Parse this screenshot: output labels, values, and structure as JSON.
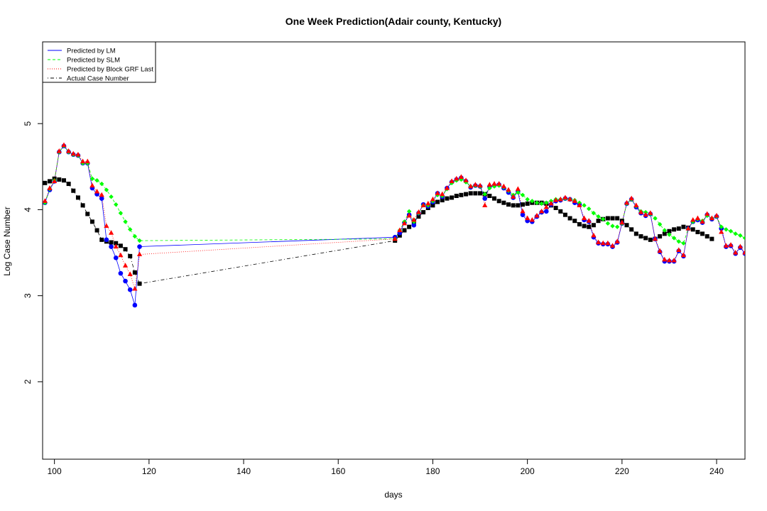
{
  "chart_data": {
    "type": "line",
    "title": "One Week Prediction(Adair county, Kentucky)",
    "xlabel": "days",
    "ylabel": "Log Case Number",
    "xlim": [
      97.5,
      246
    ],
    "ylim": [
      1.1,
      5.95
    ],
    "xticks": [
      100,
      120,
      140,
      160,
      180,
      200,
      220,
      240
    ],
    "yticks": [
      2,
      3,
      4,
      5
    ],
    "grid": false,
    "legend_position": "top-left",
    "legend": [
      {
        "label": "Predicted by LM",
        "color": "#0000ff",
        "style": "solid"
      },
      {
        "label": "Predicted by SLM",
        "color": "#00ff00",
        "style": "dashed"
      },
      {
        "label": "Predicted by Block GRF Last",
        "color": "#ff0000",
        "style": "dotted"
      },
      {
        "label": "Actual Case Number",
        "color": "#000000",
        "style": "dotdash"
      }
    ],
    "series": [
      {
        "name": "Actual Case Number",
        "color": "#000000",
        "marker": "square",
        "x": [
          97,
          98,
          99,
          100,
          101,
          102,
          103,
          104,
          105,
          106,
          107,
          108,
          109,
          110,
          111,
          112,
          113,
          114,
          115,
          116,
          117,
          118,
          172,
          173,
          174,
          175,
          176,
          177,
          178,
          179,
          180,
          181,
          182,
          183,
          184,
          185,
          186,
          187,
          188,
          189,
          190,
          191,
          192,
          193,
          194,
          195,
          196,
          197,
          198,
          199,
          200,
          201,
          202,
          203,
          204,
          205,
          206,
          207,
          208,
          209,
          210,
          211,
          212,
          213,
          214,
          215,
          216,
          217,
          218,
          219,
          220,
          221,
          222,
          223,
          224,
          225,
          226,
          227,
          228,
          229,
          230,
          231,
          232,
          233,
          234,
          235,
          236,
          237,
          238,
          239
        ],
        "y": [
          4.27,
          4.31,
          4.33,
          4.36,
          4.35,
          4.34,
          4.3,
          4.22,
          4.14,
          4.05,
          3.95,
          3.86,
          3.76,
          3.65,
          3.63,
          3.62,
          3.61,
          3.58,
          3.54,
          3.46,
          3.27,
          3.14,
          3.64,
          3.7,
          3.76,
          3.8,
          3.86,
          3.92,
          3.97,
          4.02,
          4.05,
          4.09,
          4.11,
          4.13,
          4.14,
          4.16,
          4.17,
          4.18,
          4.19,
          4.19,
          4.19,
          4.18,
          4.16,
          4.13,
          4.1,
          4.08,
          4.06,
          4.05,
          4.05,
          4.06,
          4.07,
          4.08,
          4.08,
          4.08,
          4.07,
          4.05,
          4.02,
          3.98,
          3.94,
          3.9,
          3.87,
          3.83,
          3.81,
          3.8,
          3.82,
          3.87,
          3.89,
          3.9,
          3.9,
          3.9,
          3.87,
          3.82,
          3.77,
          3.72,
          3.69,
          3.67,
          3.65,
          3.66,
          3.69,
          3.72,
          3.75,
          3.77,
          3.78,
          3.8,
          3.79,
          3.77,
          3.74,
          3.72,
          3.69,
          3.66
        ]
      },
      {
        "name": "Predicted by LM",
        "color": "#0000ff",
        "marker": "circle",
        "x": [
          97,
          98,
          99,
          100,
          101,
          102,
          103,
          104,
          105,
          106,
          107,
          108,
          109,
          110,
          111,
          112,
          113,
          114,
          115,
          116,
          117,
          118,
          172,
          173,
          174,
          175,
          176,
          177,
          178,
          179,
          180,
          181,
          182,
          183,
          184,
          185,
          186,
          187,
          188,
          189,
          190,
          191,
          192,
          193,
          194,
          195,
          196,
          197,
          198,
          199,
          200,
          201,
          202,
          203,
          204,
          205,
          206,
          207,
          208,
          209,
          210,
          211,
          212,
          213,
          214,
          215,
          216,
          217,
          218,
          219,
          220,
          221,
          222,
          223,
          224,
          225,
          226,
          227,
          228,
          229,
          230,
          231,
          232,
          233,
          234,
          235,
          236,
          237,
          238,
          239,
          240,
          241,
          242,
          243,
          244,
          245,
          246
        ],
        "y": [
          4.1,
          4.08,
          4.23,
          4.33,
          4.67,
          4.74,
          4.67,
          4.64,
          4.63,
          4.54,
          4.54,
          4.25,
          4.18,
          4.13,
          3.65,
          3.57,
          3.44,
          3.26,
          3.17,
          3.07,
          2.89,
          3.57,
          3.68,
          3.73,
          3.85,
          3.94,
          3.82,
          3.96,
          4.06,
          4.04,
          4.09,
          4.19,
          4.15,
          4.25,
          4.32,
          4.35,
          4.37,
          4.33,
          4.26,
          4.28,
          4.27,
          4.13,
          4.27,
          4.28,
          4.29,
          4.25,
          4.2,
          4.14,
          4.21,
          3.94,
          3.87,
          3.86,
          3.92,
          3.97,
          3.98,
          4.06,
          4.1,
          4.11,
          4.13,
          4.12,
          4.08,
          4.06,
          3.88,
          3.86,
          3.68,
          3.61,
          3.6,
          3.6,
          3.57,
          3.62,
          3.84,
          4.07,
          4.12,
          4.03,
          3.96,
          3.93,
          3.95,
          3.66,
          3.51,
          3.4,
          3.4,
          3.4,
          3.52,
          3.46,
          3.78,
          3.86,
          3.88,
          3.85,
          3.94,
          3.89,
          3.92,
          3.78,
          3.57,
          3.58,
          3.49,
          3.56,
          3.49
        ]
      },
      {
        "name": "Predicted by SLM",
        "color": "#00ff00",
        "marker": "diamond",
        "x": [
          97,
          98,
          99,
          100,
          101,
          102,
          103,
          104,
          105,
          106,
          107,
          108,
          109,
          110,
          111,
          112,
          113,
          114,
          115,
          116,
          117,
          118,
          172,
          173,
          174,
          175,
          176,
          177,
          178,
          179,
          180,
          181,
          182,
          183,
          184,
          185,
          186,
          187,
          188,
          189,
          190,
          191,
          192,
          193,
          194,
          195,
          196,
          197,
          198,
          199,
          200,
          201,
          202,
          203,
          204,
          205,
          206,
          207,
          208,
          209,
          210,
          211,
          212,
          213,
          214,
          215,
          216,
          217,
          218,
          219,
          220,
          221,
          222,
          223,
          224,
          225,
          226,
          227,
          228,
          229,
          230,
          231,
          232,
          233,
          234,
          235,
          236,
          237,
          238,
          239,
          240,
          241,
          242,
          243,
          244,
          245,
          246
        ],
        "y": [
          4.1,
          4.08,
          4.24,
          4.34,
          4.67,
          4.74,
          4.67,
          4.64,
          4.63,
          4.54,
          4.54,
          4.36,
          4.34,
          4.3,
          4.23,
          4.15,
          4.06,
          3.96,
          3.86,
          3.77,
          3.69,
          3.64,
          3.66,
          3.76,
          3.86,
          3.98,
          3.86,
          3.96,
          4.05,
          4.05,
          4.1,
          4.17,
          4.16,
          4.24,
          4.31,
          4.34,
          4.35,
          4.32,
          4.27,
          4.28,
          4.27,
          4.18,
          4.25,
          4.27,
          4.28,
          4.26,
          4.22,
          4.17,
          4.2,
          4.17,
          4.12,
          4.1,
          4.08,
          4.07,
          4.08,
          4.1,
          4.12,
          4.12,
          4.13,
          4.12,
          4.11,
          4.08,
          4.05,
          4.01,
          3.96,
          3.92,
          3.89,
          3.84,
          3.81,
          3.8,
          3.84,
          4.07,
          4.12,
          4.04,
          3.98,
          3.97,
          3.95,
          3.9,
          3.83,
          3.76,
          3.71,
          3.67,
          3.63,
          3.61,
          3.78,
          3.86,
          3.89,
          3.87,
          3.93,
          3.9,
          3.92,
          3.8,
          3.77,
          3.75,
          3.72,
          3.7,
          3.67
        ]
      },
      {
        "name": "Predicted by Block GRF Last",
        "color": "#ff0000",
        "marker": "triangle",
        "x": [
          97,
          98,
          99,
          100,
          101,
          102,
          103,
          104,
          105,
          106,
          107,
          108,
          109,
          110,
          111,
          112,
          113,
          114,
          115,
          116,
          117,
          118,
          172,
          173,
          174,
          175,
          176,
          177,
          178,
          179,
          180,
          181,
          182,
          183,
          184,
          185,
          186,
          187,
          188,
          189,
          190,
          191,
          192,
          193,
          194,
          195,
          196,
          197,
          198,
          199,
          200,
          201,
          202,
          203,
          204,
          205,
          206,
          207,
          208,
          209,
          210,
          211,
          212,
          213,
          214,
          215,
          216,
          217,
          218,
          219,
          220,
          221,
          222,
          223,
          224,
          225,
          226,
          227,
          228,
          229,
          230,
          231,
          232,
          233,
          234,
          235,
          236,
          237,
          238,
          239,
          240,
          241,
          242,
          243,
          244,
          245,
          246
        ],
        "y": [
          4.11,
          4.1,
          4.25,
          4.33,
          4.68,
          4.75,
          4.68,
          4.65,
          4.64,
          4.56,
          4.56,
          4.28,
          4.21,
          4.17,
          3.81,
          3.73,
          3.57,
          3.47,
          3.35,
          3.25,
          3.08,
          3.48,
          3.66,
          3.76,
          3.84,
          3.93,
          3.88,
          3.97,
          4.05,
          4.07,
          4.12,
          4.19,
          4.18,
          4.25,
          4.33,
          4.36,
          4.38,
          4.34,
          4.27,
          4.29,
          4.28,
          4.05,
          4.29,
          4.3,
          4.3,
          4.27,
          4.23,
          4.15,
          4.24,
          3.98,
          3.9,
          3.88,
          3.93,
          3.98,
          4.03,
          4.07,
          4.11,
          4.12,
          4.14,
          4.12,
          4.1,
          4.05,
          3.9,
          3.87,
          3.7,
          3.62,
          3.61,
          3.61,
          3.58,
          3.63,
          3.85,
          4.08,
          4.13,
          4.05,
          3.97,
          3.94,
          3.96,
          3.66,
          3.52,
          3.42,
          3.41,
          3.41,
          3.53,
          3.47,
          3.78,
          3.88,
          3.9,
          3.86,
          3.95,
          3.9,
          3.93,
          3.74,
          3.58,
          3.59,
          3.5,
          3.57,
          3.5
        ]
      }
    ]
  }
}
